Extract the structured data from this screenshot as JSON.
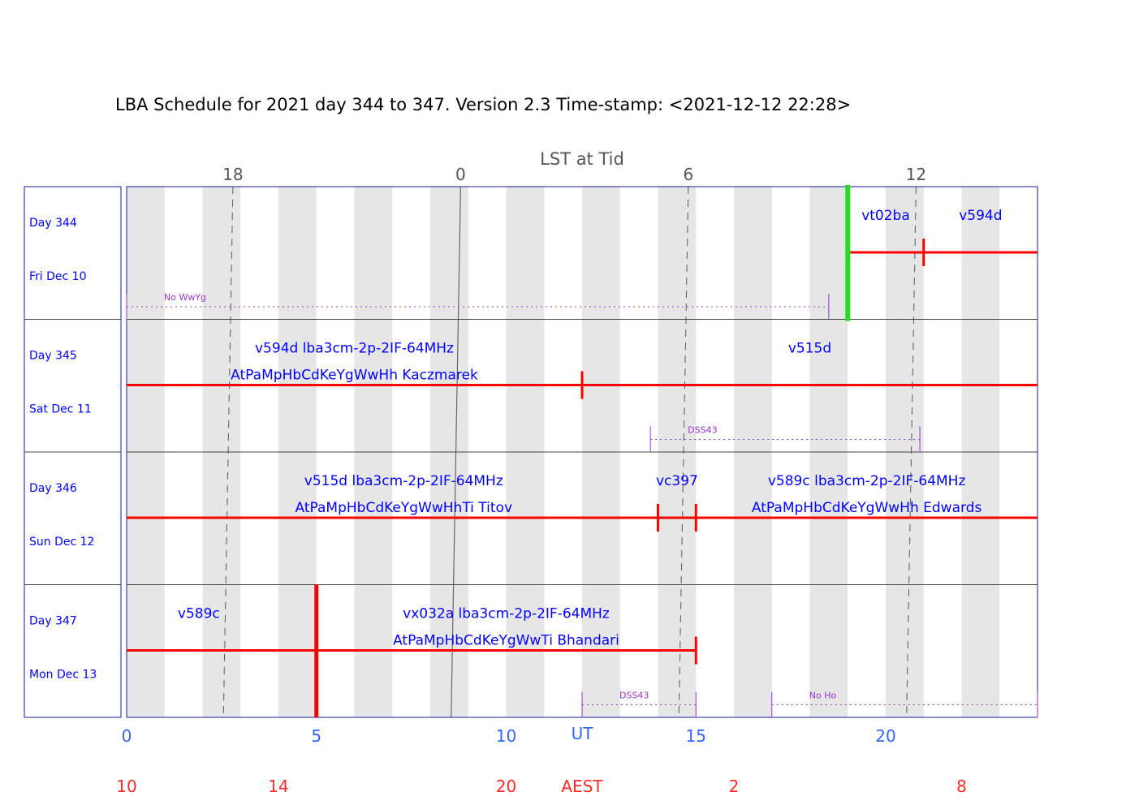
{
  "title": "LBA Schedule for 2021 day 344 to 347. Version 2.3 Time-stamp: <2021-12-12 22:28>",
  "lst_label": "LST at Tid",
  "ut_label": "UT",
  "aest_label": "AEST",
  "colors": {
    "frame": "#1a1aa0",
    "shade": "#e6e6e6",
    "text_blue": "#0000ff",
    "bar_red": "#ff0000",
    "aest_red": "#ff2a2a",
    "band_green": "#22dd22",
    "note_purple": "#9933cc",
    "grid": "#666666"
  },
  "chart_data": {
    "type": "gantt",
    "x_range_ut_hours": [
      0,
      24
    ],
    "ut_ticks": [
      {
        "hour": 0,
        "label": "0"
      },
      {
        "hour": 5,
        "label": "5"
      },
      {
        "hour": 10,
        "label": "10"
      },
      {
        "hour": 15,
        "label": "15"
      },
      {
        "hour": 20,
        "label": "20"
      }
    ],
    "aest_ticks": [
      {
        "hour": 0,
        "label": "10"
      },
      {
        "hour": 4,
        "label": "14"
      },
      {
        "hour": 10,
        "label": "20"
      },
      {
        "hour": 16,
        "label": "2"
      },
      {
        "hour": 22,
        "label": "8"
      }
    ],
    "lst_ticks": [
      {
        "label": "18",
        "ut_start": 2.8,
        "ut_end": 2.55
      },
      {
        "label": "0",
        "ut_start": 8.8,
        "ut_end": 8.55
      },
      {
        "label": "6",
        "ut_start": 14.8,
        "ut_end": 14.55
      },
      {
        "label": "12",
        "ut_start": 20.8,
        "ut_end": 20.55
      }
    ],
    "lst_solid_label": "0",
    "days": [
      {
        "day_label": "Day 344",
        "date_label": "Fri Dec 10",
        "bars": [
          {
            "start": 19.0,
            "end": 24.0
          }
        ],
        "ticks": [
          19.0,
          21.0
        ],
        "green_band": 19.0,
        "labels": [
          {
            "text": "vt02ba",
            "x": 20.0,
            "line": 1
          },
          {
            "text": "v594d",
            "x": 22.5,
            "line": 1
          }
        ],
        "notes": [
          {
            "text": "No WwYg",
            "start": 0.0,
            "end": 18.5
          }
        ]
      },
      {
        "day_label": "Day 345",
        "date_label": "Sat Dec 11",
        "bars": [
          {
            "start": 0.0,
            "end": 24.0
          }
        ],
        "ticks": [
          12.0
        ],
        "labels": [
          {
            "text": "v594d lba3cm-2p-2IF-64MHz",
            "x": 6.0,
            "line": 1
          },
          {
            "text": "AtPaMpHbCdKeYgWwHh Kaczmarek",
            "x": 6.0,
            "line": 2
          },
          {
            "text": "v515d",
            "x": 18.0,
            "line": 1
          }
        ],
        "notes": [
          {
            "text": "DSS43",
            "start": 13.8,
            "end": 20.9
          }
        ]
      },
      {
        "day_label": "Day 346",
        "date_label": "Sun Dec 12",
        "bars": [
          {
            "start": 0.0,
            "end": 24.0
          }
        ],
        "ticks": [
          14.0,
          15.0
        ],
        "labels": [
          {
            "text": "v515d lba3cm-2p-2IF-64MHz",
            "x": 7.3,
            "line": 1
          },
          {
            "text": "AtPaMpHbCdKeYgWwHhTi Titov",
            "x": 7.3,
            "line": 2
          },
          {
            "text": "vc397",
            "x": 14.5,
            "line": 1
          },
          {
            "text": "v589c lba3cm-2p-2IF-64MHz",
            "x": 19.5,
            "line": 1
          },
          {
            "text": "AtPaMpHbCdKeYgWwHh Edwards",
            "x": 19.5,
            "line": 2
          }
        ],
        "notes": []
      },
      {
        "day_label": "Day 347",
        "date_label": "Mon Dec 13",
        "bars": [
          {
            "start": 0.0,
            "end": 15.0
          }
        ],
        "ticks": [
          15.0
        ],
        "big_tick": 5.0,
        "labels": [
          {
            "text": "v589c",
            "x": 1.9,
            "line": 1
          },
          {
            "text": "vx032a lba3cm-2p-2IF-64MHz",
            "x": 10.0,
            "line": 1
          },
          {
            "text": "AtPaMpHbCdKeYgWwTi Bhandari",
            "x": 10.0,
            "line": 2
          }
        ],
        "notes": [
          {
            "text": "DSS43",
            "start": 12.0,
            "end": 15.0
          },
          {
            "text": "No Ho",
            "start": 17.0,
            "end": 24.0
          }
        ]
      }
    ]
  }
}
